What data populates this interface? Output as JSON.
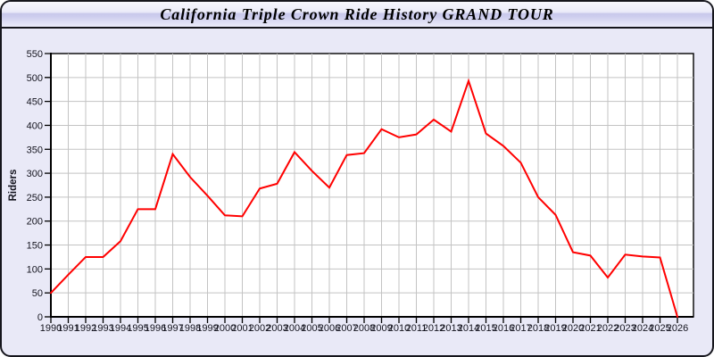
{
  "window": {
    "title": "California Triple Crown Ride History GRAND TOUR"
  },
  "chart_data": {
    "type": "line",
    "title": "California Triple Crown Ride History GRAND TOUR",
    "xlabel": "",
    "ylabel": "Riders",
    "x": [
      1990,
      1991,
      1992,
      1993,
      1994,
      1995,
      1996,
      1997,
      1998,
      1999,
      2000,
      2001,
      2002,
      2003,
      2004,
      2005,
      2006,
      2007,
      2008,
      2009,
      2010,
      2011,
      2012,
      2013,
      2014,
      2015,
      2016,
      2017,
      2018,
      2019,
      2020,
      2021,
      2022,
      2023,
      2024,
      2025,
      2026
    ],
    "series": [
      {
        "name": "Riders",
        "values": [
          50,
          88,
          125,
          125,
          158,
          225,
          225,
          340,
          292,
          253,
          212,
          210,
          268,
          278,
          344,
          305,
          270,
          338,
          342,
          392,
          375,
          381,
          412,
          387,
          493,
          383,
          357,
          322,
          250,
          213,
          135,
          128,
          82,
          130,
          126,
          124,
          0
        ]
      }
    ],
    "ylim": [
      0,
      550
    ],
    "yticks": [
      0,
      50,
      100,
      150,
      200,
      250,
      300,
      350,
      400,
      450,
      500,
      550
    ],
    "grid": true,
    "legend": false,
    "line_color": "#ff0000",
    "plot_bg": "#ffffff",
    "grid_color": "#c3c3c3",
    "axis_color": "#000000"
  }
}
